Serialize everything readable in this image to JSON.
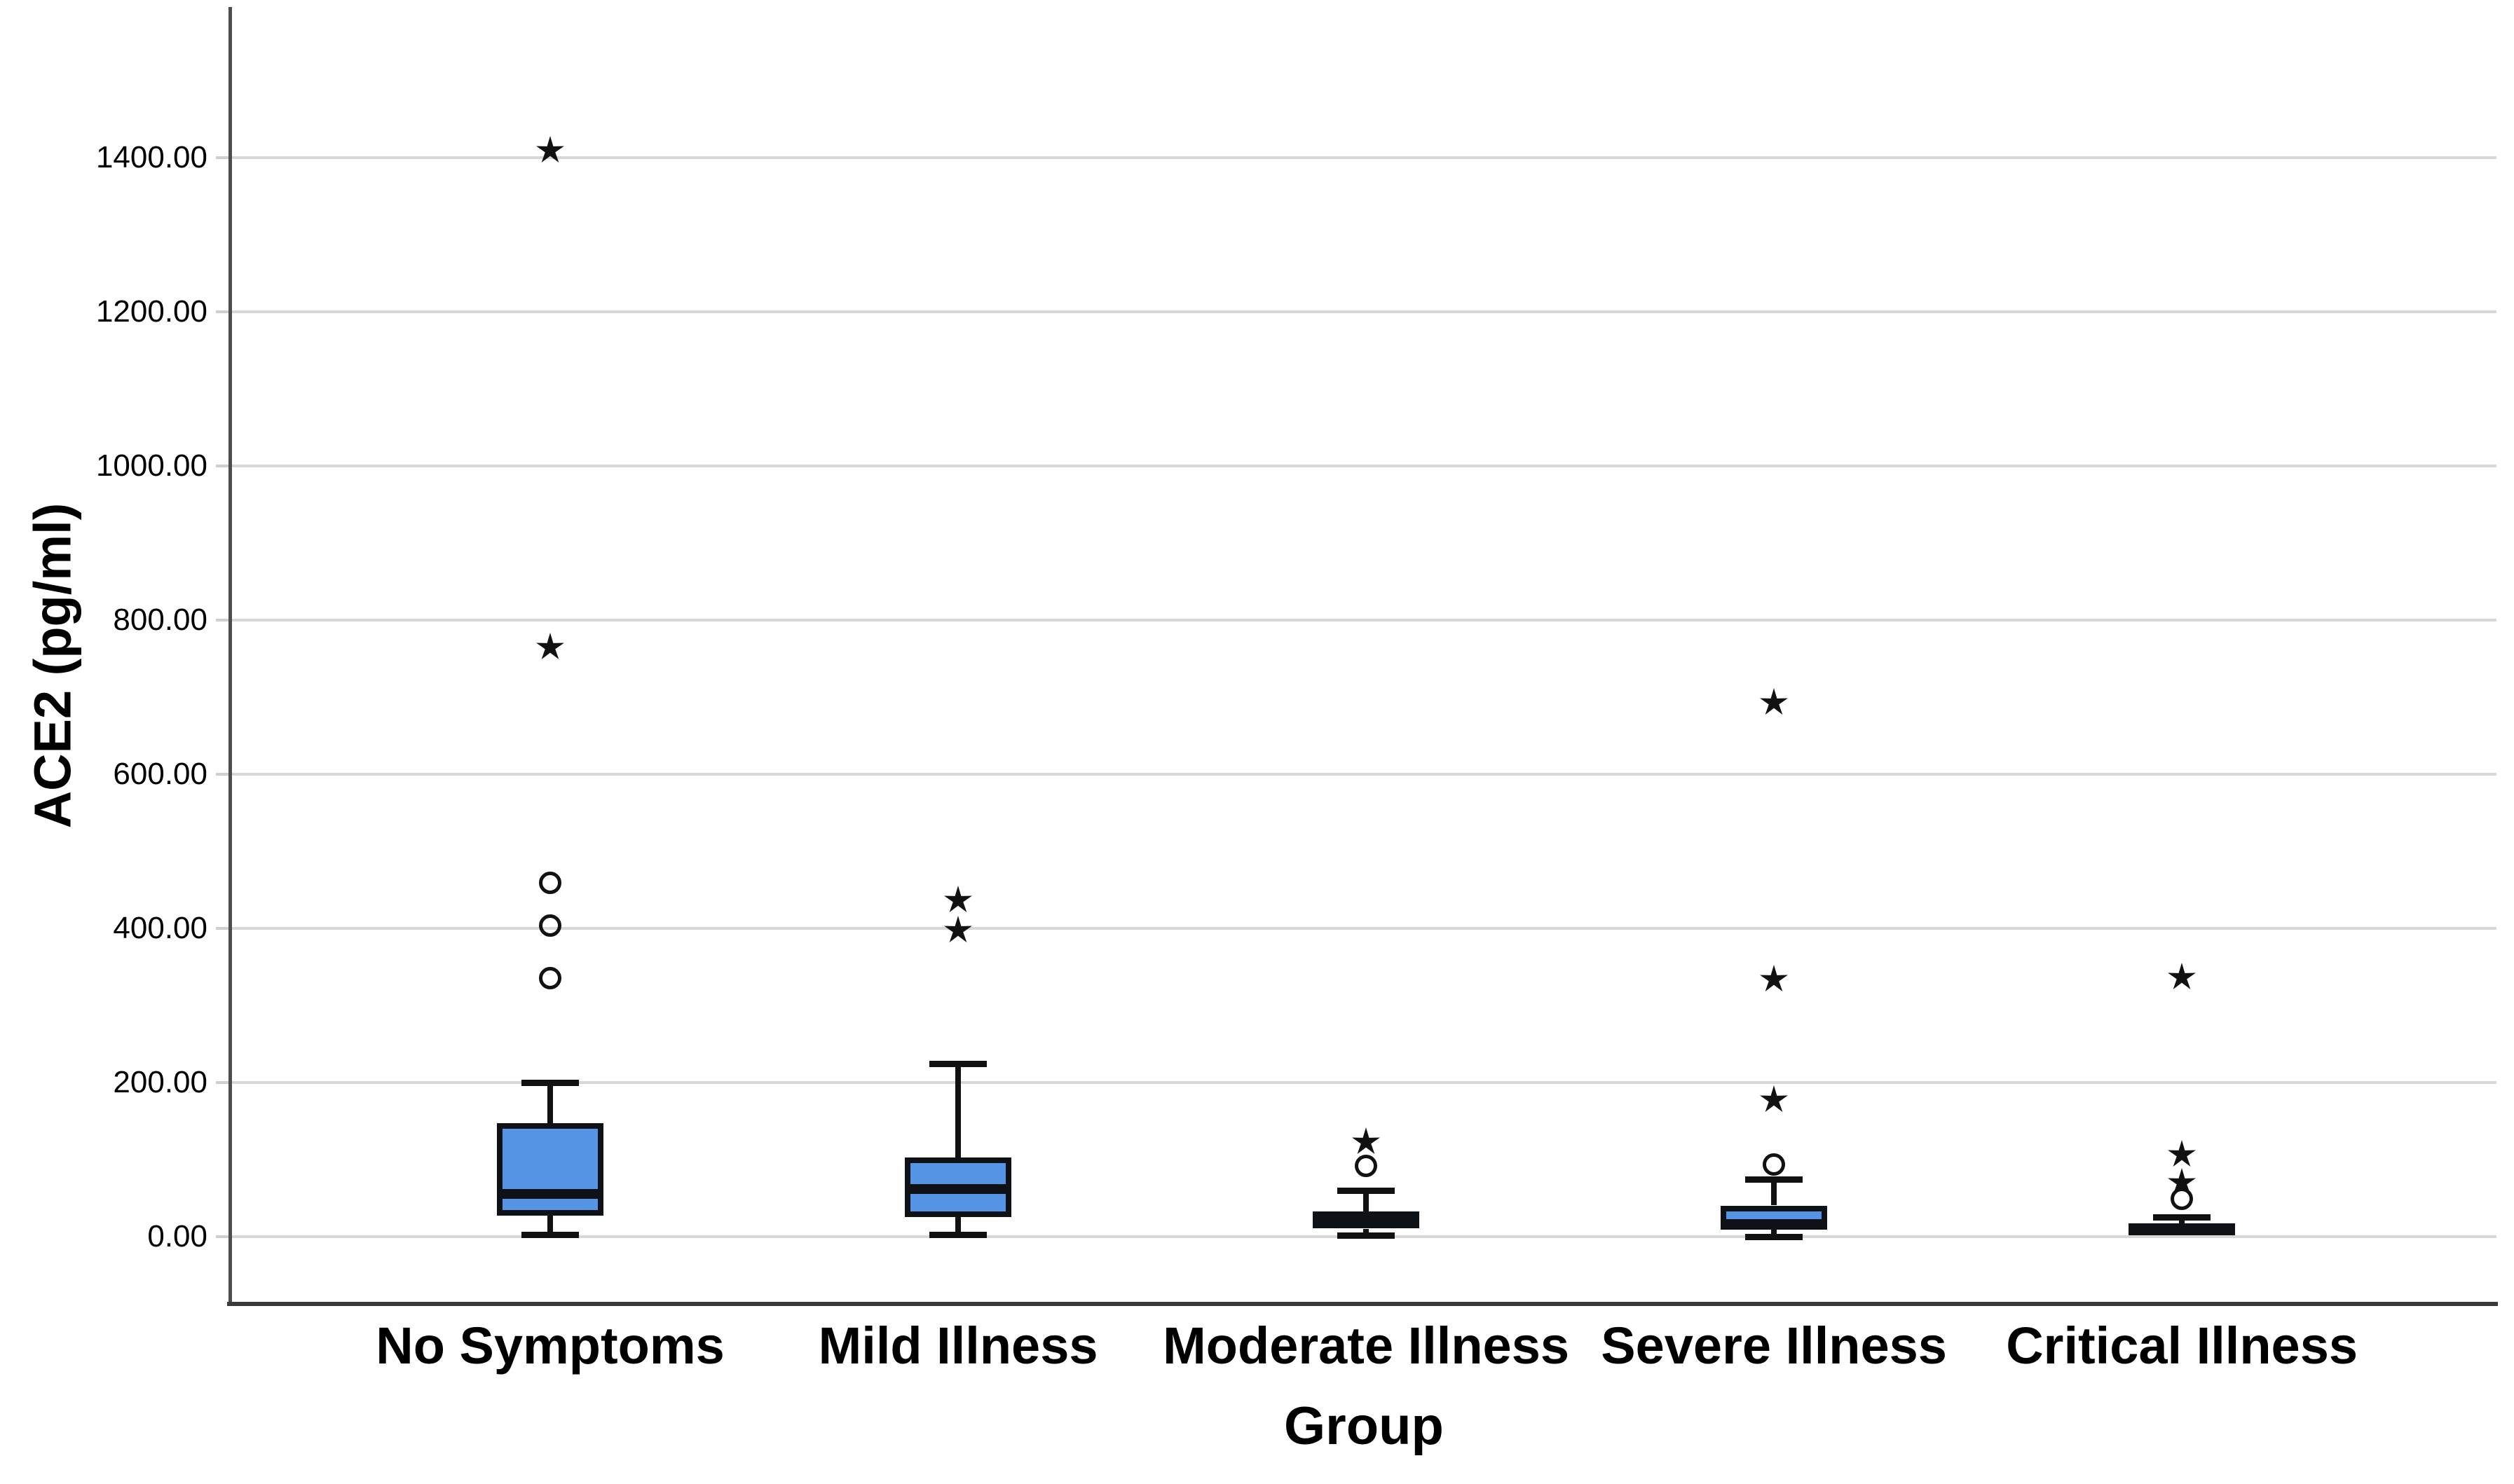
{
  "chart_data": {
    "type": "boxplot",
    "title": "",
    "ylabel": "ACE2 (pg/ml)",
    "xlabel": "Group",
    "y_axis": {
      "min": -85,
      "max": 1595,
      "grid": true,
      "tick_values": [
        0,
        200,
        400,
        600,
        800,
        1000,
        1200,
        1400
      ],
      "tick_labels": [
        "0.00",
        "200.00",
        "400.00",
        "600.00",
        "800.00",
        "1000.00",
        "1200.00",
        "1400.00"
      ]
    },
    "categories": [
      "No Symptoms",
      "Mild Illness",
      "Moderate Illness",
      "Severe Illness",
      "Critical Illness"
    ],
    "series": [
      {
        "category": "No Symptoms",
        "whisker_low": 2,
        "q1": 27,
        "median": 55,
        "q3": 147,
        "whisker_high": 200,
        "outliers_circle": [
          335,
          403,
          459
        ],
        "outliers_extreme": [
          764,
          1409
        ]
      },
      {
        "category": "Mild Illness",
        "whisker_low": 2,
        "q1": 25,
        "median": 61,
        "q3": 102,
        "whisker_high": 224,
        "outliers_circle": [],
        "outliers_extreme": [
          397,
          436
        ]
      },
      {
        "category": "Moderate Illness",
        "whisker_low": 1,
        "q1": 10,
        "median": 21,
        "q3": 32,
        "whisker_high": 60,
        "outliers_circle": [
          91
        ],
        "outliers_extreme": [
          122
        ]
      },
      {
        "category": "Severe Illness",
        "whisker_low": 0,
        "q1": 9,
        "median": 16,
        "q3": 40,
        "whisker_high": 74,
        "outliers_circle": [
          93
        ],
        "outliers_extreme": [
          177,
          333,
          692
        ]
      },
      {
        "category": "Critical Illness",
        "whisker_low": null,
        "q1": 2,
        "median": 8,
        "q3": 17,
        "whisker_high": 25,
        "outliers_circle": [
          49
        ],
        "outliers_extreme": [
          70,
          106,
          336
        ]
      }
    ],
    "colors": {
      "box_fill": "#5594e4",
      "box_border": "#0e1116",
      "marker": "#111111",
      "gridline": "#d7d7d7",
      "axis": "#4d4d4d"
    },
    "legend": null
  }
}
